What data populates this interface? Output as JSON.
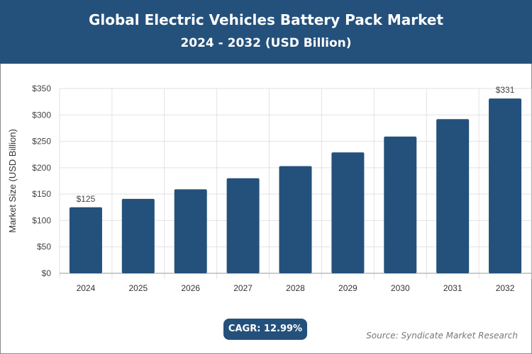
{
  "header": {
    "title": "Global Electric Vehicles Battery Pack Market",
    "subtitle": "2024 - 2032 (USD Billion)"
  },
  "chart_data": {
    "type": "bar",
    "title": "Global Electric Vehicles Battery Pack Market",
    "subtitle": "2024 - 2032 (USD Billion)",
    "ylabel": "Market Size (USD Billion)",
    "xlabel": "",
    "categories": [
      "2024",
      "2025",
      "2026",
      "2027",
      "2028",
      "2029",
      "2030",
      "2031",
      "2032"
    ],
    "values": [
      125,
      141,
      159,
      180,
      203,
      229,
      259,
      292,
      331
    ],
    "data_labels": {
      "0": "$125",
      "8": "$331"
    },
    "ylim": [
      0,
      350
    ],
    "yticks": [
      "$0",
      "$50",
      "$100",
      "$150",
      "$200",
      "$250",
      "$300",
      "$350"
    ],
    "grid": true,
    "bar_color": "#24517b"
  },
  "footer": {
    "cagr": "CAGR: 12.99%",
    "source": "Source: Syndicate Market Research"
  }
}
